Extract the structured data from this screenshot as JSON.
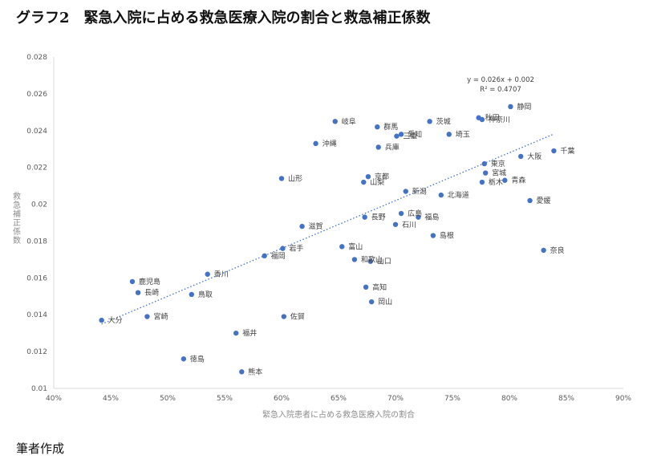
{
  "title": "グラフ2　緊急入院に占める救急医療入院の割合と救急補正係数",
  "footer": "筆者作成",
  "chart_data": {
    "type": "scatter",
    "xlabel": "緊急入院患者に占める救急医療入院の割合",
    "ylabel": "救急補正係数",
    "xlim": [
      0.4,
      0.9
    ],
    "ylim": [
      0.01,
      0.028
    ],
    "xticks": [
      "40%",
      "45%",
      "50%",
      "55%",
      "60%",
      "65%",
      "70%",
      "75%",
      "80%",
      "85%",
      "90%"
    ],
    "yticks": [
      "0.01",
      "0.012",
      "0.014",
      "0.016",
      "0.018",
      "0.02",
      "0.022",
      "0.024",
      "0.026",
      "0.028"
    ],
    "trendline": {
      "equation": "y = 0.026x + 0.002",
      "r2": "R² = 0.4707",
      "slope": 0.026,
      "intercept": 0.002
    },
    "points": [
      {
        "name": "静岡",
        "x": 0.801,
        "y": 0.0253
      },
      {
        "name": "秋田",
        "x": 0.773,
        "y": 0.0247
      },
      {
        "name": "神奈川",
        "x": 0.776,
        "y": 0.0246
      },
      {
        "name": "茨城",
        "x": 0.73,
        "y": 0.0245
      },
      {
        "name": "岐阜",
        "x": 0.647,
        "y": 0.0245
      },
      {
        "name": "群馬",
        "x": 0.684,
        "y": 0.0242
      },
      {
        "name": "愛知",
        "x": 0.705,
        "y": 0.0238
      },
      {
        "name": "三重",
        "x": 0.701,
        "y": 0.0237
      },
      {
        "name": "埼玉",
        "x": 0.747,
        "y": 0.0238
      },
      {
        "name": "沖縄",
        "x": 0.63,
        "y": 0.0233
      },
      {
        "name": "兵庫",
        "x": 0.685,
        "y": 0.0231
      },
      {
        "name": "千葉",
        "x": 0.839,
        "y": 0.0229
      },
      {
        "name": "大阪",
        "x": 0.81,
        "y": 0.0226
      },
      {
        "name": "東京",
        "x": 0.778,
        "y": 0.0222
      },
      {
        "name": "宮城",
        "x": 0.779,
        "y": 0.0217
      },
      {
        "name": "山形",
        "x": 0.6,
        "y": 0.0214
      },
      {
        "name": "京都",
        "x": 0.676,
        "y": 0.0215
      },
      {
        "name": "山梨",
        "x": 0.672,
        "y": 0.0212
      },
      {
        "name": "青森",
        "x": 0.796,
        "y": 0.0213
      },
      {
        "name": "栃木",
        "x": 0.776,
        "y": 0.0212
      },
      {
        "name": "新潟",
        "x": 0.709,
        "y": 0.0207
      },
      {
        "name": "北海道",
        "x": 0.74,
        "y": 0.0205
      },
      {
        "name": "愛媛",
        "x": 0.818,
        "y": 0.0202
      },
      {
        "name": "広島",
        "x": 0.705,
        "y": 0.0195
      },
      {
        "name": "長野",
        "x": 0.673,
        "y": 0.0193
      },
      {
        "name": "福島",
        "x": 0.72,
        "y": 0.0193
      },
      {
        "name": "石川",
        "x": 0.7,
        "y": 0.0189
      },
      {
        "name": "滋賀",
        "x": 0.618,
        "y": 0.0188
      },
      {
        "name": "島根",
        "x": 0.733,
        "y": 0.0183
      },
      {
        "name": "富山",
        "x": 0.653,
        "y": 0.0177
      },
      {
        "name": "岩手",
        "x": 0.601,
        "y": 0.0176
      },
      {
        "name": "奈良",
        "x": 0.83,
        "y": 0.0175
      },
      {
        "name": "福岡",
        "x": 0.585,
        "y": 0.0172
      },
      {
        "name": "和歌山",
        "x": 0.664,
        "y": 0.017
      },
      {
        "name": "山口",
        "x": 0.678,
        "y": 0.0169
      },
      {
        "name": "香川",
        "x": 0.535,
        "y": 0.0162
      },
      {
        "name": "鹿児島",
        "x": 0.469,
        "y": 0.0158
      },
      {
        "name": "高知",
        "x": 0.674,
        "y": 0.0155
      },
      {
        "name": "長崎",
        "x": 0.474,
        "y": 0.0152
      },
      {
        "name": "鳥取",
        "x": 0.521,
        "y": 0.0151
      },
      {
        "name": "岡山",
        "x": 0.679,
        "y": 0.0147
      },
      {
        "name": "宮崎",
        "x": 0.482,
        "y": 0.0139
      },
      {
        "name": "佐賀",
        "x": 0.602,
        "y": 0.0139
      },
      {
        "name": "大分",
        "x": 0.442,
        "y": 0.0137
      },
      {
        "name": "福井",
        "x": 0.56,
        "y": 0.013
      },
      {
        "name": "徳島",
        "x": 0.514,
        "y": 0.0116
      },
      {
        "name": "熊本",
        "x": 0.565,
        "y": 0.0109
      }
    ]
  }
}
